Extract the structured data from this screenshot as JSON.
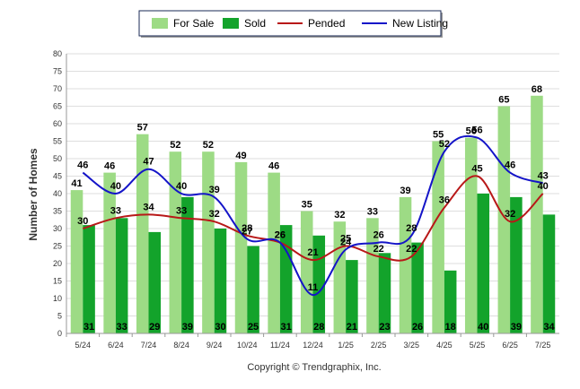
{
  "chart_data": {
    "type": "bar",
    "title": "",
    "xlabel": "",
    "ylabel": "Number of Homes",
    "ylim": [
      0,
      80
    ],
    "ytick_step": 5,
    "grid": true,
    "legend_position": "top-center",
    "categories": [
      "5/24",
      "6/24",
      "7/24",
      "8/24",
      "9/24",
      "10/24",
      "11/24",
      "12/24",
      "1/25",
      "2/25",
      "3/25",
      "4/25",
      "5/25",
      "6/25",
      "7/25"
    ],
    "series": [
      {
        "name": "For Sale",
        "type": "bar",
        "color": "#9ddb85",
        "values": [
          41,
          46,
          57,
          52,
          52,
          49,
          46,
          35,
          32,
          33,
          39,
          55,
          56,
          65,
          68
        ]
      },
      {
        "name": "Sold",
        "type": "bar",
        "color": "#13a32b",
        "values": [
          31,
          33,
          29,
          39,
          30,
          25,
          31,
          28,
          21,
          23,
          26,
          18,
          40,
          39,
          34
        ]
      },
      {
        "name": "Pended",
        "type": "line",
        "color": "#b81818",
        "values": [
          30,
          33,
          34,
          33,
          32,
          28,
          26,
          21,
          25,
          22,
          22,
          36,
          45,
          32,
          40
        ]
      },
      {
        "name": "New Listing",
        "type": "line",
        "color": "#1414c8",
        "values": [
          46,
          40,
          47,
          40,
          39,
          27,
          26,
          11,
          24,
          26,
          28,
          52,
          56,
          46,
          43
        ]
      }
    ],
    "footer": "Copyright © Trendgraphix, Inc."
  }
}
